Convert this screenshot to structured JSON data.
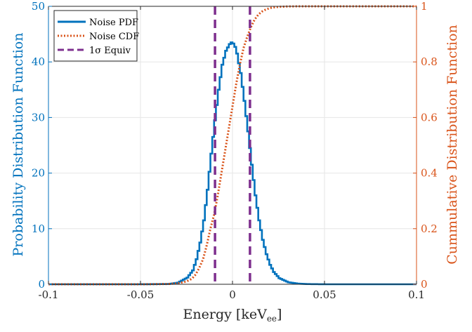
{
  "chart_data": {
    "type": "line",
    "title": "",
    "xlabel": "Energy [keV",
    "xlabel_sub": "ee",
    "xlabel_close": "]",
    "ylabel_left": "Probability Distribution Function",
    "ylabel_right": "Cummulative Distribution Function",
    "xlim": [
      -0.1,
      0.1
    ],
    "ylim_left": [
      0,
      50
    ],
    "ylim_right": [
      0,
      1
    ],
    "grid": true,
    "legend_position": "top-left",
    "x_ticks": [
      "-0.1",
      "-0.05",
      "0",
      "0.05",
      "0.1"
    ],
    "y_left_ticks": [
      "0",
      "10",
      "20",
      "30",
      "40",
      "50"
    ],
    "y_right_ticks": [
      "0",
      "0.2",
      "0.4",
      "0.6",
      "0.8",
      "1"
    ],
    "colors": {
      "pdf": "#0072BD",
      "cdf": "#D95319",
      "sigma": "#7E2F8E",
      "grid": "#e6e6e6",
      "axis": "#262626"
    },
    "series": [
      {
        "name": "Noise PDF",
        "axis": "left",
        "style": "solid",
        "x": [
          -0.1,
          -0.05,
          -0.035,
          -0.03,
          -0.025,
          -0.022,
          -0.02,
          -0.018,
          -0.016,
          -0.014,
          -0.012,
          -0.01,
          -0.008,
          -0.006,
          -0.004,
          -0.002,
          -0.001,
          0,
          0.001,
          0.002,
          0.004,
          0.006,
          0.008,
          0.01,
          0.012,
          0.014,
          0.016,
          0.018,
          0.02,
          0.022,
          0.025,
          0.03,
          0.035,
          0.04,
          0.05,
          0.1
        ],
        "y": [
          0,
          0,
          0.05,
          0.3,
          1.2,
          2.5,
          4.5,
          7.5,
          11.5,
          17,
          23.5,
          29.5,
          35,
          39.5,
          42,
          43.2,
          43.5,
          43.3,
          42.7,
          41.5,
          38,
          33,
          27.5,
          21.5,
          16,
          11.5,
          8,
          5.4,
          3.5,
          2.2,
          1.1,
          0.35,
          0.12,
          0.04,
          0,
          0
        ]
      },
      {
        "name": "Noise CDF",
        "axis": "right",
        "style": "dotted",
        "x": [
          -0.1,
          -0.05,
          -0.035,
          -0.03,
          -0.025,
          -0.022,
          -0.02,
          -0.018,
          -0.016,
          -0.014,
          -0.012,
          -0.01,
          -0.008,
          -0.006,
          -0.004,
          -0.002,
          0,
          0.002,
          0.004,
          0.006,
          0.008,
          0.01,
          0.012,
          0.014,
          0.016,
          0.018,
          0.02,
          0.022,
          0.025,
          0.03,
          0.035,
          0.04,
          0.05,
          0.1
        ],
        "y": [
          0,
          0,
          0.001,
          0.003,
          0.01,
          0.02,
          0.035,
          0.06,
          0.09,
          0.14,
          0.2,
          0.25,
          0.32,
          0.4,
          0.48,
          0.56,
          0.64,
          0.72,
          0.79,
          0.85,
          0.89,
          0.925,
          0.952,
          0.97,
          0.981,
          0.988,
          0.993,
          0.996,
          0.998,
          0.9995,
          1,
          1,
          1,
          1
        ]
      },
      {
        "name": "1σ Equiv",
        "axis": "left",
        "style": "dashed",
        "vlines": [
          -0.0095,
          0.0095
        ]
      }
    ]
  }
}
